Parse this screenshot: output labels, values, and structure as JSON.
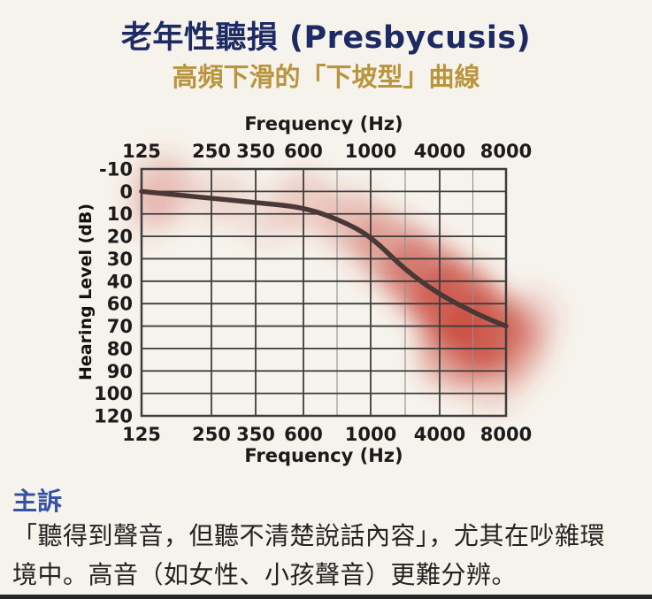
{
  "header": {
    "title": "老年性聽損 (Presbycusis)",
    "subtitle": "高頻下滑的「下坡型」曲線"
  },
  "chart_data": {
    "type": "line",
    "xlabel": "Frequency (Hz)",
    "xlabel_top": "Frequency (Hz)",
    "ylabel": "Hearing Level (dB)",
    "x_tick_labels": [
      "125",
      "250",
      "350",
      "600",
      "1000",
      "4000",
      "8000"
    ],
    "x_tick_freqs": [
      125,
      250,
      350,
      600,
      1000,
      4000,
      8000
    ],
    "y_tick_labels": [
      "-10",
      "0",
      "10",
      "20",
      "30",
      "40",
      "60",
      "70",
      "80",
      "90",
      "100",
      "120"
    ],
    "ylim": [
      -10,
      120
    ],
    "grid": "on",
    "series": [
      {
        "name": "hearing-threshold-curve",
        "points": [
          {
            "freq": 125,
            "db": 0
          },
          {
            "freq": 250,
            "db": 3
          },
          {
            "freq": 350,
            "db": 5
          },
          {
            "freq": 600,
            "db": 7
          },
          {
            "freq": 800,
            "db": 13
          },
          {
            "freq": 1000,
            "db": 20
          },
          {
            "freq": 2000,
            "db": 35
          },
          {
            "freq": 4000,
            "db": 52
          },
          {
            "freq": 6000,
            "db": 65
          },
          {
            "freq": 8000,
            "db": 70
          }
        ]
      }
    ],
    "annotation": "red blurred diagonal band emphasizing sloping high-frequency hearing loss"
  },
  "complaint": {
    "heading": "主訴",
    "lines": [
      "「聽得到聲音，但聽不清楚說話內容」，尤其在吵雜環",
      "境中。高音（如女性、小孩聲音）更難分辨。"
    ]
  },
  "colors": {
    "background": "#f6f3ec",
    "title_navy": "#1d2a63",
    "subtitle_gold": "#b9953f",
    "heading_blue": "#3552a4",
    "body_text": "#232323",
    "grid_line": "#3d3d3d",
    "grid_minor": "#8f8f8f",
    "curve": "#4a3836",
    "highlight_red": "#c63d2f",
    "tick_text": "#1b1b1b",
    "bottom_bar": "#262626"
  }
}
